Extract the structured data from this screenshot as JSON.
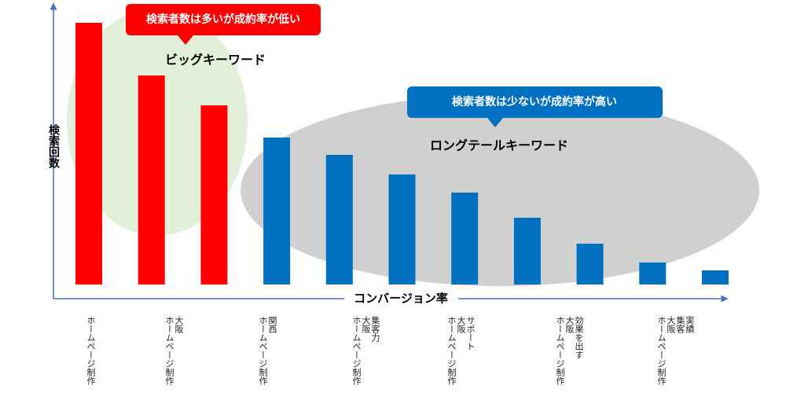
{
  "chart_data": {
    "type": "bar",
    "y_label": "検索回数",
    "x_label": "コンバージョン率",
    "groups": [
      {
        "title": "ビッグキーワード",
        "callout": "検索者数は多いが成約率が低い"
      },
      {
        "title": "ロングテールキーワード",
        "callout": "検索者数は少ないが成約率が高い"
      }
    ],
    "values": [
      333,
      266,
      228,
      187,
      165,
      140,
      117,
      85,
      52,
      28,
      18
    ],
    "colors": [
      "#ff0000",
      "#ff0000",
      "#ff0000",
      "#0070c0",
      "#0070c0",
      "#0070c0",
      "#0070c0",
      "#0070c0",
      "#0070c0",
      "#0070c0",
      "#0070c0"
    ],
    "ylim": [
      0,
      350
    ],
    "keywords": [
      [
        "ホームページ制作"
      ],
      [
        "大阪",
        "ホームページ制作"
      ],
      [
        "関西",
        "ホームページ制作"
      ],
      [
        "集客力",
        "大阪",
        "ホームページ制作"
      ],
      [
        "サポート",
        "大阪",
        "ホームページ制作"
      ],
      [
        "効果を出す",
        "大阪",
        "ホームページ制作"
      ],
      [
        "実績",
        "集客",
        "大阪",
        "ホームページ制作"
      ]
    ]
  }
}
